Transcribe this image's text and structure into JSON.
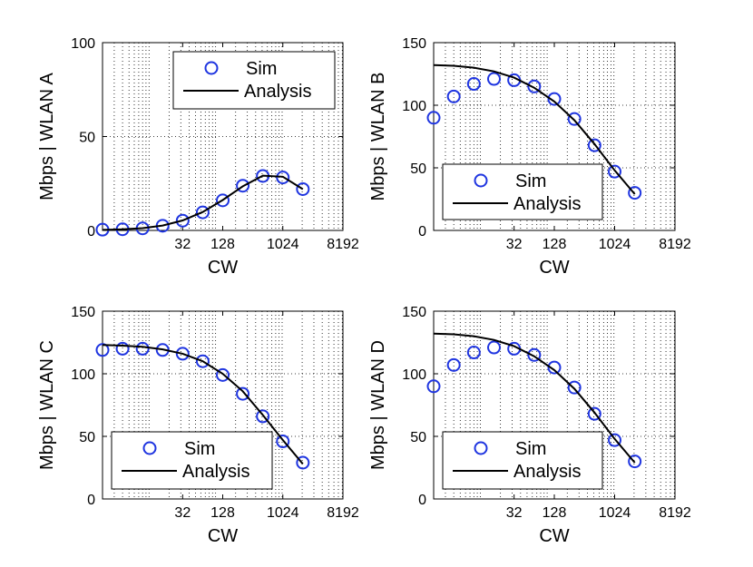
{
  "chart_data": [
    {
      "type": "line",
      "panel": "A",
      "xlabel": "CW",
      "ylabel": "Mbps | WLAN A",
      "xscale": "log2",
      "x": [
        2,
        4,
        8,
        16,
        32,
        64,
        128,
        256,
        512,
        1024,
        2048,
        4096,
        8192
      ],
      "xticks": [
        32,
        128,
        1024,
        8192
      ],
      "xtick_labels": [
        "32",
        "128",
        "1024",
        "8192"
      ],
      "ylim": [
        0,
        100
      ],
      "yticks": [
        0,
        50,
        100
      ],
      "ytick_labels": [
        "0",
        "50",
        "100"
      ],
      "grid": true,
      "legend_position": "top-right",
      "series": [
        {
          "name": "Sim",
          "style": "markers",
          "color": "#1f35e0",
          "values": [
            0.4,
            0.6,
            1.1,
            2.5,
            5.2,
            9.6,
            16.0,
            23.8,
            29.0,
            28.2,
            22.0
          ],
          "x": [
            2,
            4,
            8,
            16,
            32,
            64,
            128,
            256,
            512,
            1024,
            2048
          ]
        },
        {
          "name": "Analysis",
          "style": "line",
          "color": "#000000",
          "values": [
            0.3,
            0.6,
            1.2,
            2.6,
            5.3,
            9.8,
            16.2,
            23.5,
            29.2,
            28.6,
            22.0
          ],
          "x": [
            2,
            4,
            8,
            16,
            32,
            64,
            128,
            256,
            512,
            1024,
            2048
          ]
        }
      ]
    },
    {
      "type": "line",
      "panel": "B",
      "xlabel": "CW",
      "ylabel": "Mbps | WLAN B",
      "xscale": "log2",
      "x": [
        2,
        4,
        8,
        16,
        32,
        64,
        128,
        256,
        512,
        1024,
        2048
      ],
      "xticks": [
        32,
        128,
        1024,
        8192
      ],
      "xtick_labels": [
        "32",
        "128",
        "1024",
        "8192"
      ],
      "ylim": [
        0,
        150
      ],
      "yticks": [
        0,
        50,
        100,
        150
      ],
      "ytick_labels": [
        "0",
        "50",
        "100",
        "150"
      ],
      "grid": true,
      "legend_position": "bottom-right",
      "series": [
        {
          "name": "Sim",
          "style": "markers",
          "color": "#1f35e0",
          "values": [
            90,
            107,
            117,
            121,
            120,
            115,
            105,
            89,
            68,
            47,
            30
          ]
        },
        {
          "name": "Analysis",
          "style": "line",
          "color": "#000000",
          "values": [
            132,
            131.5,
            130,
            127,
            122,
            114,
            103,
            88,
            69,
            48,
            29
          ]
        }
      ]
    },
    {
      "type": "line",
      "panel": "C",
      "xlabel": "CW",
      "ylabel": "Mbps | WLAN C",
      "xscale": "log2",
      "x": [
        2,
        4,
        8,
        16,
        32,
        64,
        128,
        256,
        512,
        1024,
        2048
      ],
      "xticks": [
        32,
        128,
        1024,
        8192
      ],
      "xtick_labels": [
        "32",
        "128",
        "1024",
        "8192"
      ],
      "ylim": [
        0,
        150
      ],
      "yticks": [
        0,
        50,
        100,
        150
      ],
      "ytick_labels": [
        "0",
        "50",
        "100",
        "150"
      ],
      "grid": true,
      "legend_position": "bottom-left",
      "series": [
        {
          "name": "Sim",
          "style": "markers",
          "color": "#1f35e0",
          "values": [
            119,
            120,
            120,
            119,
            116,
            110,
            99,
            84,
            66,
            46,
            29
          ]
        },
        {
          "name": "Analysis",
          "style": "line",
          "color": "#000000",
          "values": [
            123,
            122.5,
            121.5,
            119.5,
            116,
            110,
            100,
            86,
            67,
            47,
            28
          ]
        }
      ]
    },
    {
      "type": "line",
      "panel": "D",
      "xlabel": "CW",
      "ylabel": "Mbps | WLAN D",
      "xscale": "log2",
      "x": [
        2,
        4,
        8,
        16,
        32,
        64,
        128,
        256,
        512,
        1024,
        2048
      ],
      "xticks": [
        32,
        128,
        1024,
        8192
      ],
      "xtick_labels": [
        "32",
        "128",
        "1024",
        "8192"
      ],
      "ylim": [
        0,
        150
      ],
      "yticks": [
        0,
        50,
        100,
        150
      ],
      "ytick_labels": [
        "0",
        "50",
        "100",
        "150"
      ],
      "grid": true,
      "legend_position": "bottom-right",
      "series": [
        {
          "name": "Sim",
          "style": "markers",
          "color": "#1f35e0",
          "values": [
            90,
            107,
            117,
            121,
            120,
            115,
            105,
            89,
            68,
            47,
            30
          ]
        },
        {
          "name": "Analysis",
          "style": "line",
          "color": "#000000",
          "values": [
            132,
            131.5,
            130,
            127,
            122,
            114,
            103,
            88,
            69,
            48,
            29
          ]
        }
      ]
    }
  ]
}
